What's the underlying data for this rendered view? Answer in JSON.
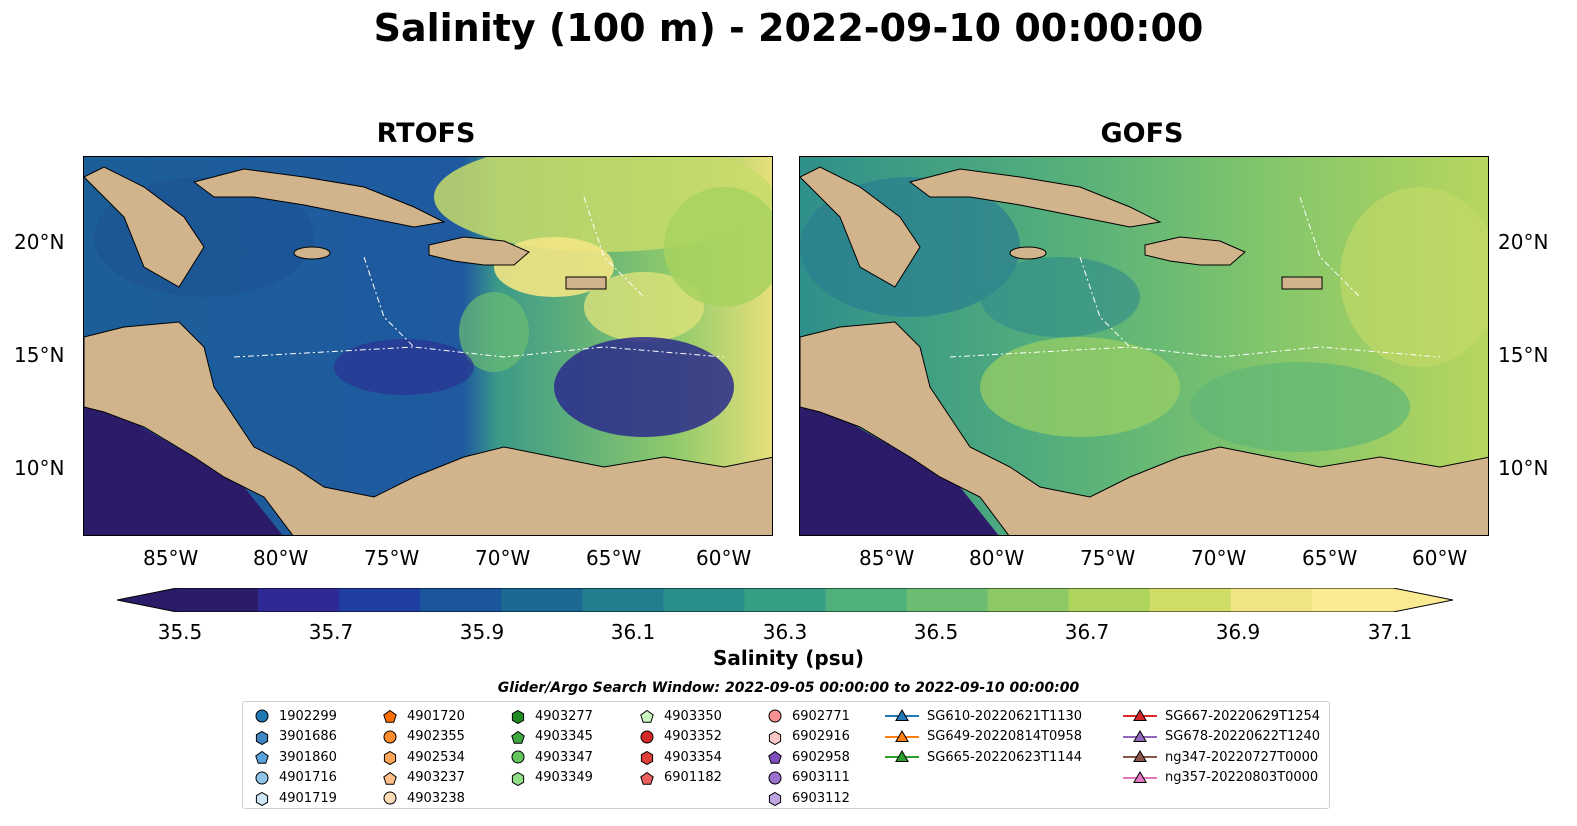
{
  "title": "Salinity (100 m) - 2022-09-10 00:00:00",
  "panels": [
    {
      "title": "RTOFS"
    },
    {
      "title": "GOFS"
    }
  ],
  "axes": {
    "lon_ticks": [
      "85°W",
      "80°W",
      "75°W",
      "70°W",
      "65°W",
      "60°W"
    ],
    "lat_ticks": [
      "20°N",
      "15°N",
      "10°N"
    ]
  },
  "colorbar": {
    "label": "Salinity (psu)",
    "ticks": [
      "35.5",
      "35.7",
      "35.9",
      "36.1",
      "36.3",
      "36.5",
      "36.7",
      "36.9",
      "37.1"
    ],
    "colors": [
      "#2c1b68",
      "#2e2996",
      "#1f3fa3",
      "#1b559c",
      "#1c6a93",
      "#227e8e",
      "#2a908a",
      "#37a084",
      "#50b07b",
      "#6cbd72",
      "#8dc965",
      "#aed45c",
      "#cfdd67",
      "#f0e683",
      "#faeb92"
    ]
  },
  "legend": {
    "title": "Glider/Argo Search Window: 2022-09-05 00:00:00 to 2022-09-10 00:00:00",
    "items": [
      {
        "label": "1902299",
        "marker": "circle",
        "color": "#1f77b4"
      },
      {
        "label": "3901686",
        "marker": "hexagon",
        "color": "#3e86c4"
      },
      {
        "label": "3901860",
        "marker": "pentagon",
        "color": "#5ba3dc"
      },
      {
        "label": "4901716",
        "marker": "circle",
        "color": "#8ec3ea"
      },
      {
        "label": "4901719",
        "marker": "hexagon",
        "color": "#cfe6f6"
      },
      {
        "label": "4901720",
        "marker": "pentagon",
        "color": "#ff6f00"
      },
      {
        "label": "4902355",
        "marker": "circle",
        "color": "#ff8c2a"
      },
      {
        "label": "4902534",
        "marker": "hexagon",
        "color": "#ffa657"
      },
      {
        "label": "4903237",
        "marker": "pentagon",
        "color": "#ffc08a"
      },
      {
        "label": "4903238",
        "marker": "circle",
        "color": "#ffdcb8"
      },
      {
        "label": "4903277",
        "marker": "hexagon",
        "color": "#1e8a22"
      },
      {
        "label": "4903345",
        "marker": "pentagon",
        "color": "#3fa83f"
      },
      {
        "label": "4903347",
        "marker": "circle",
        "color": "#62c55e"
      },
      {
        "label": "4903349",
        "marker": "hexagon",
        "color": "#92de88"
      },
      {
        "label": "4903350",
        "marker": "pentagon",
        "color": "#cdf5c2"
      },
      {
        "label": "4903352",
        "marker": "circle",
        "color": "#d62728"
      },
      {
        "label": "4903354",
        "marker": "hexagon",
        "color": "#e0403a"
      },
      {
        "label": "6901182",
        "marker": "pentagon",
        "color": "#ec6060"
      },
      {
        "label": "6902771",
        "marker": "circle",
        "color": "#f59090"
      },
      {
        "label": "6902916",
        "marker": "hexagon",
        "color": "#fbc7c7"
      },
      {
        "label": "6902958",
        "marker": "pentagon",
        "color": "#7f4fbf"
      },
      {
        "label": "6903111",
        "marker": "circle",
        "color": "#9c72cf"
      },
      {
        "label": "6903112",
        "marker": "hexagon",
        "color": "#c0a5e3"
      },
      {
        "label": "SG610-20220621T1130",
        "marker": "triangle",
        "color": "#1f77b4"
      },
      {
        "label": "SG649-20220814T0958",
        "marker": "triangle",
        "color": "#ff7f0e"
      },
      {
        "label": "SG665-20220623T1144",
        "marker": "triangle",
        "color": "#2ca02c"
      },
      {
        "label": "SG667-20220629T1254",
        "marker": "triangle",
        "color": "#d62728"
      },
      {
        "label": "SG678-20220622T1240",
        "marker": "triangle",
        "color": "#9467bd"
      },
      {
        "label": "ng347-20220727T0000",
        "marker": "triangle",
        "color": "#8c564b"
      },
      {
        "label": "ng357-20220803T0000",
        "marker": "triangle",
        "color": "#e377c2"
      }
    ]
  }
}
